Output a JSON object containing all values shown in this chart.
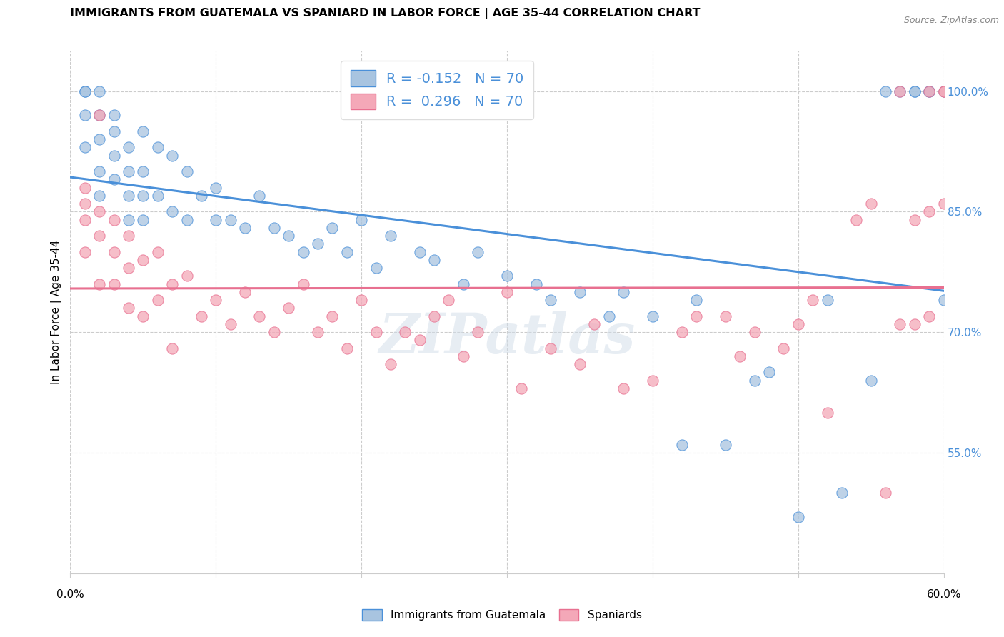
{
  "title": "IMMIGRANTS FROM GUATEMALA VS SPANIARD IN LABOR FORCE | AGE 35-44 CORRELATION CHART",
  "source": "Source: ZipAtlas.com",
  "ylabel": "In Labor Force | Age 35-44",
  "ytick_vals": [
    1.0,
    0.85,
    0.7,
    0.55
  ],
  "ytick_labels": [
    "100.0%",
    "85.0%",
    "70.0%",
    "55.0%"
  ],
  "r_blue": -0.152,
  "r_pink": 0.296,
  "n_blue": 70,
  "n_pink": 70,
  "legend_label_blue": "Immigrants from Guatemala",
  "legend_label_pink": "Spaniards",
  "blue_color": "#a8c4e0",
  "pink_color": "#f4a8b8",
  "blue_line_color": "#4a90d9",
  "pink_line_color": "#e87090",
  "watermark": "ZIPatlas",
  "blue_x": [
    0.01,
    0.01,
    0.01,
    0.01,
    0.02,
    0.02,
    0.02,
    0.02,
    0.02,
    0.03,
    0.03,
    0.03,
    0.03,
    0.04,
    0.04,
    0.04,
    0.04,
    0.05,
    0.05,
    0.05,
    0.05,
    0.06,
    0.06,
    0.07,
    0.07,
    0.08,
    0.08,
    0.09,
    0.1,
    0.1,
    0.11,
    0.12,
    0.13,
    0.14,
    0.15,
    0.16,
    0.17,
    0.18,
    0.19,
    0.2,
    0.21,
    0.22,
    0.24,
    0.25,
    0.27,
    0.28,
    0.3,
    0.32,
    0.33,
    0.35,
    0.37,
    0.38,
    0.4,
    0.42,
    0.43,
    0.45,
    0.47,
    0.48,
    0.5,
    0.52,
    0.53,
    0.55,
    0.56,
    0.57,
    0.58,
    0.58,
    0.59,
    0.59,
    0.6,
    0.6
  ],
  "blue_y": [
    1.0,
    1.0,
    0.97,
    0.93,
    1.0,
    0.97,
    0.94,
    0.9,
    0.87,
    0.97,
    0.95,
    0.92,
    0.89,
    0.93,
    0.9,
    0.87,
    0.84,
    0.95,
    0.9,
    0.87,
    0.84,
    0.93,
    0.87,
    0.92,
    0.85,
    0.9,
    0.84,
    0.87,
    0.88,
    0.84,
    0.84,
    0.83,
    0.87,
    0.83,
    0.82,
    0.8,
    0.81,
    0.83,
    0.8,
    0.84,
    0.78,
    0.82,
    0.8,
    0.79,
    0.76,
    0.8,
    0.77,
    0.76,
    0.74,
    0.75,
    0.72,
    0.75,
    0.72,
    0.56,
    0.74,
    0.56,
    0.64,
    0.65,
    0.47,
    0.74,
    0.5,
    0.64,
    1.0,
    1.0,
    1.0,
    1.0,
    1.0,
    1.0,
    1.0,
    0.74
  ],
  "pink_x": [
    0.01,
    0.01,
    0.01,
    0.01,
    0.02,
    0.02,
    0.02,
    0.02,
    0.03,
    0.03,
    0.03,
    0.04,
    0.04,
    0.04,
    0.05,
    0.05,
    0.06,
    0.06,
    0.07,
    0.07,
    0.08,
    0.09,
    0.1,
    0.11,
    0.12,
    0.13,
    0.14,
    0.15,
    0.16,
    0.17,
    0.18,
    0.19,
    0.2,
    0.21,
    0.22,
    0.23,
    0.24,
    0.25,
    0.26,
    0.27,
    0.28,
    0.3,
    0.31,
    0.33,
    0.35,
    0.36,
    0.38,
    0.4,
    0.42,
    0.43,
    0.45,
    0.46,
    0.47,
    0.49,
    0.5,
    0.51,
    0.52,
    0.54,
    0.55,
    0.56,
    0.57,
    0.57,
    0.58,
    0.58,
    0.59,
    0.59,
    0.59,
    0.6,
    0.6,
    0.6
  ],
  "pink_y": [
    0.88,
    0.86,
    0.84,
    0.8,
    0.97,
    0.85,
    0.82,
    0.76,
    0.84,
    0.8,
    0.76,
    0.82,
    0.78,
    0.73,
    0.79,
    0.72,
    0.8,
    0.74,
    0.76,
    0.68,
    0.77,
    0.72,
    0.74,
    0.71,
    0.75,
    0.72,
    0.7,
    0.73,
    0.76,
    0.7,
    0.72,
    0.68,
    0.74,
    0.7,
    0.66,
    0.7,
    0.69,
    0.72,
    0.74,
    0.67,
    0.7,
    0.75,
    0.63,
    0.68,
    0.66,
    0.71,
    0.63,
    0.64,
    0.7,
    0.72,
    0.72,
    0.67,
    0.7,
    0.68,
    0.71,
    0.74,
    0.6,
    0.84,
    0.86,
    0.5,
    1.0,
    0.71,
    0.71,
    0.84,
    1.0,
    0.72,
    0.85,
    1.0,
    0.86,
    1.0
  ]
}
